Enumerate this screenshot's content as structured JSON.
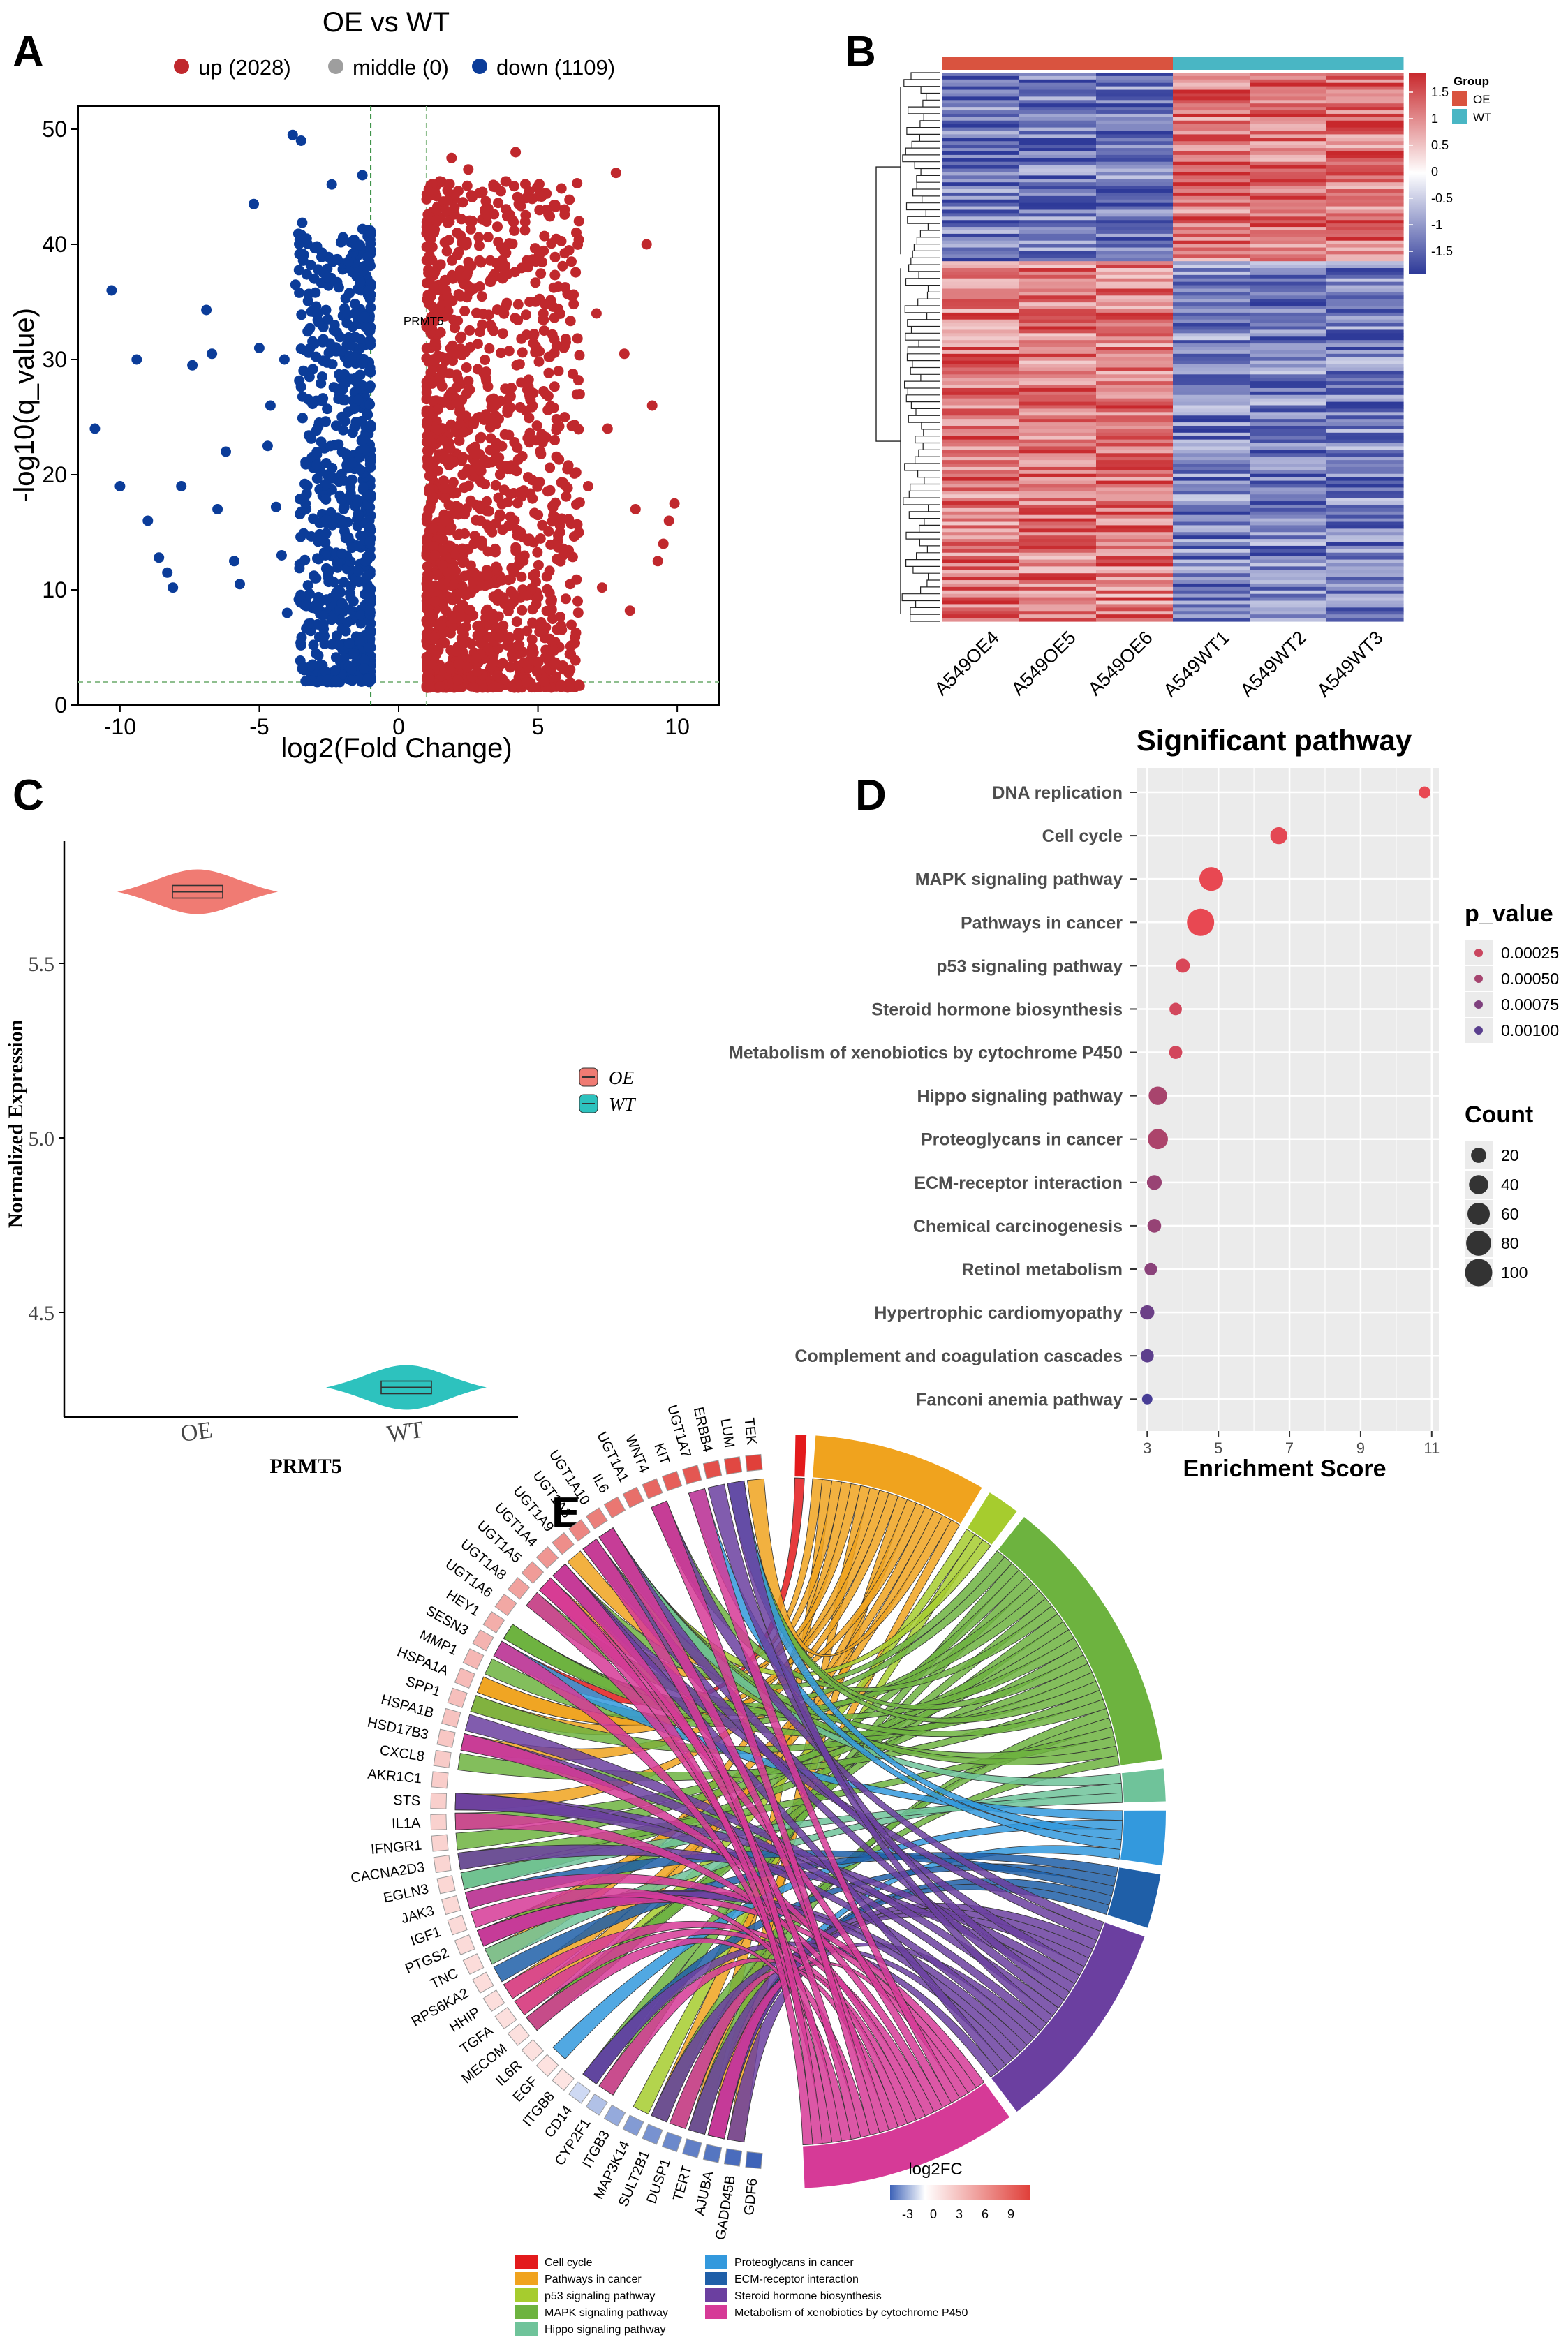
{
  "panels": {
    "a": "A",
    "b": "B",
    "c": "C",
    "d": "D",
    "e": "E"
  },
  "chart_data": [
    {
      "panel": "A",
      "type": "scatter",
      "title": "OE vs WT",
      "xlabel": "log2(Fold Change)",
      "ylabel": "-log10(q_value)",
      "xlim": [
        -11.5,
        11.5
      ],
      "ylim": [
        0,
        52
      ],
      "xticks": [
        -10,
        -5,
        0,
        5,
        10
      ],
      "yticks": [
        0,
        10,
        20,
        30,
        40,
        50
      ],
      "legend": [
        {
          "label": "up (2028)",
          "color": "#C0282D"
        },
        {
          "label": "middle (0)",
          "color": "#9E9E9E"
        },
        {
          "label": "down (1109)",
          "color": "#0B3C99"
        }
      ],
      "thresholds": {
        "fc": [
          -1,
          1
        ],
        "q": 2
      },
      "annotation": {
        "label": "PRMT5",
        "x": 1.3,
        "y": 33
      },
      "series": [
        {
          "name": "down",
          "color": "#0B3C99",
          "points": [
            [
              -10.9,
              24
            ],
            [
              -10.3,
              36
            ],
            [
              -10.0,
              19
            ],
            [
              -9.4,
              30
            ],
            [
              -9.0,
              16
            ],
            [
              -8.6,
              12.8
            ],
            [
              -8.3,
              11.5
            ],
            [
              -8.1,
              10.2
            ],
            [
              -7.8,
              19
            ],
            [
              -7.4,
              29.5
            ],
            [
              -6.9,
              34.3
            ],
            [
              -6.7,
              30.5
            ],
            [
              -6.5,
              17
            ],
            [
              -6.2,
              22
            ],
            [
              -5.9,
              12.5
            ],
            [
              -5.7,
              10.5
            ],
            [
              -5.2,
              43.5
            ],
            [
              -5.0,
              31
            ],
            [
              -4.7,
              22.5
            ],
            [
              -4.6,
              26
            ],
            [
              -4.4,
              17.2
            ],
            [
              -4.2,
              13
            ],
            [
              -4.1,
              30
            ],
            [
              -4.0,
              8
            ],
            [
              -3.8,
              49.5
            ],
            [
              -3.7,
              36.5
            ],
            [
              -3.5,
              49
            ],
            [
              -3.3,
              40.5
            ],
            [
              -3.2,
              28.5
            ],
            [
              -2.9,
              34
            ],
            [
              -2.7,
              7
            ],
            [
              -2.6,
              21
            ],
            [
              -2.4,
              45.2
            ],
            [
              -2.3,
              33
            ],
            [
              -2.0,
              26.5
            ],
            [
              -1.9,
              14.5
            ],
            [
              -1.8,
              38.5
            ],
            [
              -1.7,
              30
            ],
            [
              -1.6,
              4.5
            ],
            [
              -1.5,
              28
            ],
            [
              -1.4,
              21.5
            ],
            [
              -1.3,
              46
            ],
            [
              -1.2,
              12.5
            ],
            [
              -1.1,
              2.3
            ]
          ]
        },
        {
          "name": "up",
          "color": "#C0282D",
          "points": [
            [
              1.1,
              2.3
            ],
            [
              1.3,
              9
            ],
            [
              1.5,
              28
            ],
            [
              1.7,
              36
            ],
            [
              1.9,
              47.5
            ],
            [
              2.1,
              41
            ],
            [
              2.3,
              20
            ],
            [
              2.5,
              46.5
            ],
            [
              2.7,
              14
            ],
            [
              2.9,
              25
            ],
            [
              3.1,
              43
            ],
            [
              3.3,
              33
            ],
            [
              3.5,
              12
            ],
            [
              3.8,
              38
            ],
            [
              4.0,
              20.5
            ],
            [
              4.2,
              48
            ],
            [
              4.4,
              28
            ],
            [
              4.7,
              35
            ],
            [
              5.0,
              16.5
            ],
            [
              5.3,
              43
            ],
            [
              5.6,
              23
            ],
            [
              5.9,
              13
            ],
            [
              6.2,
              38.5
            ],
            [
              6.5,
              27
            ],
            [
              6.8,
              19
            ],
            [
              7.1,
              34
            ],
            [
              7.5,
              24
            ],
            [
              7.8,
              46.2
            ],
            [
              8.1,
              30.5
            ],
            [
              8.5,
              17
            ],
            [
              8.9,
              40
            ],
            [
              9.1,
              26
            ],
            [
              9.3,
              12.5
            ],
            [
              9.5,
              14
            ],
            [
              9.7,
              16
            ],
            [
              9.9,
              17.5
            ],
            [
              8.3,
              8.2
            ],
            [
              7.3,
              10.2
            ],
            [
              6.0,
              31.5
            ],
            [
              4.6,
              9.5
            ]
          ]
        }
      ]
    },
    {
      "panel": "B",
      "type": "heatmap",
      "columns": [
        "A549OE4",
        "A549OE5",
        "A549OE6",
        "A549WT1",
        "A549WT2",
        "A549WT3"
      ],
      "groups": [
        {
          "label": "OE",
          "color": "#D9533F"
        },
        {
          "label": "WT",
          "color": "#49B6C4"
        }
      ],
      "legend_title": "Group",
      "scale_ticks": [
        "1.5",
        "1",
        "0.5",
        "0",
        "-0.5",
        "-1",
        "-1.5"
      ],
      "range": [
        -1.5,
        1.5
      ],
      "colors": {
        "low": "#2E3A99",
        "mid": "#FFFFFF",
        "high": "#C8282C"
      }
    },
    {
      "panel": "C",
      "type": "violin",
      "ylabel": "Normalized Expression",
      "xlabel": "PRMT5",
      "categories": [
        "OE",
        "WT"
      ],
      "median": [
        5.705,
        4.285
      ],
      "ylim": [
        4.2,
        5.85
      ],
      "yticks": [
        4.5,
        5.0,
        5.5
      ],
      "ytick_labels": [
        "4.5",
        "5.0",
        "5.5"
      ],
      "colors": [
        "#F07B73",
        "#2DC2BE"
      ],
      "legend": [
        "OE",
        "WT"
      ]
    },
    {
      "panel": "D",
      "type": "scatter",
      "title": "Significant pathway",
      "xlabel": "Enrichment Score",
      "xlim": [
        2.7,
        11.2
      ],
      "xticks": [
        3,
        5,
        7,
        9,
        11
      ],
      "pvalue_title": "p_value",
      "pvalue_ticks": [
        "0.00025",
        "0.00050",
        "0.00075",
        "0.00100"
      ],
      "count_title": "Count",
      "count_ticks": [
        "20",
        "40",
        "60",
        "80",
        "100"
      ],
      "pathways": [
        {
          "name": "DNA replication",
          "score": 10.8,
          "count": 8,
          "p": 5e-05
        },
        {
          "name": "Cell cycle",
          "score": 6.7,
          "count": 28,
          "p": 8e-05
        },
        {
          "name": "MAPK signaling pathway",
          "score": 4.8,
          "count": 70,
          "p": 5e-05
        },
        {
          "name": "Pathways in cancer",
          "score": 4.5,
          "count": 100,
          "p": 4e-05
        },
        {
          "name": "p53 signaling pathway",
          "score": 4.0,
          "count": 15,
          "p": 0.00015
        },
        {
          "name": "Steroid hormone biosynthesis",
          "score": 3.8,
          "count": 10,
          "p": 0.0002
        },
        {
          "name": "Metabolism of xenobiotics by cytochrome P450",
          "score": 3.8,
          "count": 12,
          "p": 0.0002
        },
        {
          "name": "Hippo signaling pathway",
          "score": 3.3,
          "count": 35,
          "p": 0.00048
        },
        {
          "name": "Proteoglycans in cancer",
          "score": 3.3,
          "count": 45,
          "p": 0.00045
        },
        {
          "name": "ECM-receptor interaction",
          "score": 3.2,
          "count": 18,
          "p": 0.00058
        },
        {
          "name": "Chemical carcinogenesis",
          "score": 3.2,
          "count": 14,
          "p": 0.0006
        },
        {
          "name": "Retinol metabolism",
          "score": 3.1,
          "count": 11,
          "p": 0.00068
        },
        {
          "name": "Hypertrophic cardiomyopathy",
          "score": 3.0,
          "count": 16,
          "p": 0.00088
        },
        {
          "name": "Complement and coagulation cascades",
          "score": 3.0,
          "count": 12,
          "p": 0.00098
        },
        {
          "name": "Fanconi anemia pathway",
          "score": 3.0,
          "count": 5,
          "p": 0.00112
        }
      ]
    },
    {
      "panel": "E",
      "type": "chord",
      "genes": [
        "TEK",
        "LUM",
        "ERBB4",
        "UGT1A7",
        "KIT",
        "WNT4",
        "UGT1A1",
        "IL6",
        "UGT1A10",
        "UGT1A3",
        "UGT1A9",
        "UGT1A4",
        "UGT1A5",
        "UGT1A8",
        "UGT1A6",
        "HEY1",
        "SESN3",
        "MMP1",
        "HSPA1A",
        "SPP1",
        "HSPA1B",
        "HSD17B3",
        "CXCL8",
        "AKR1C1",
        "STS",
        "IL1A",
        "IFNGR1",
        "CACNA2D3",
        "EGLN3",
        "JAK3",
        "IGF1",
        "PTGS2",
        "TNC",
        "RPS6KA2",
        "HHIP",
        "TGFA",
        "MECOM",
        "IL6R",
        "EGF",
        "ITGB8",
        "CD14",
        "CYP2F1",
        "ITGB3",
        "MAP3K14",
        "SULT2B1",
        "DUSP1",
        "TERT",
        "AJUBA",
        "GADD45B",
        "GDF6"
      ],
      "gene_log2fc": [
        9,
        8.6,
        8.2,
        7.8,
        7.4,
        7,
        6.6,
        6.2,
        5.8,
        5.4,
        5,
        4.6,
        4.3,
        4,
        3.7,
        3.4,
        3.1,
        2.9,
        2.7,
        2.5,
        2.3,
        2.1,
        1.9,
        1.8,
        1.7,
        1.6,
        1.5,
        1.4,
        1.3,
        1.2,
        1.1,
        1.05,
        1,
        0.95,
        0.9,
        0.85,
        0.8,
        0.75,
        0.7,
        0.6,
        -0.5,
        -1,
        -1.5,
        -1.8,
        -2,
        -2.2,
        -2.4,
        -2.6,
        -2.8,
        -3
      ],
      "log2fc_title": "log2FC",
      "log2fc_ticks": [
        "-3",
        "0",
        "3",
        "6",
        "9"
      ],
      "pathways": [
        {
          "label": "Cell cycle",
          "color": "#E31A1C"
        },
        {
          "label": "Pathways in cancer",
          "color": "#F0A31E"
        },
        {
          "label": "p53 signaling pathway",
          "color": "#A6CC2E"
        },
        {
          "label": "MAPK signaling pathway",
          "color": "#6DB33F"
        },
        {
          "label": "Hippo signaling pathway",
          "color": "#6FC39A"
        },
        {
          "label": "Proteoglycans in cancer",
          "color": "#3399DD"
        },
        {
          "label": "ECM-receptor interaction",
          "color": "#1F5FA8"
        },
        {
          "label": "Steroid hormone biosynthesis",
          "color": "#6B3FA0"
        },
        {
          "label": "Metabolism of xenobiotics by cytochrome P450",
          "color": "#D63A97"
        }
      ],
      "pathway_sizes": [
        1,
        16,
        3,
        26,
        3,
        5,
        5,
        20,
        20
      ]
    }
  ]
}
